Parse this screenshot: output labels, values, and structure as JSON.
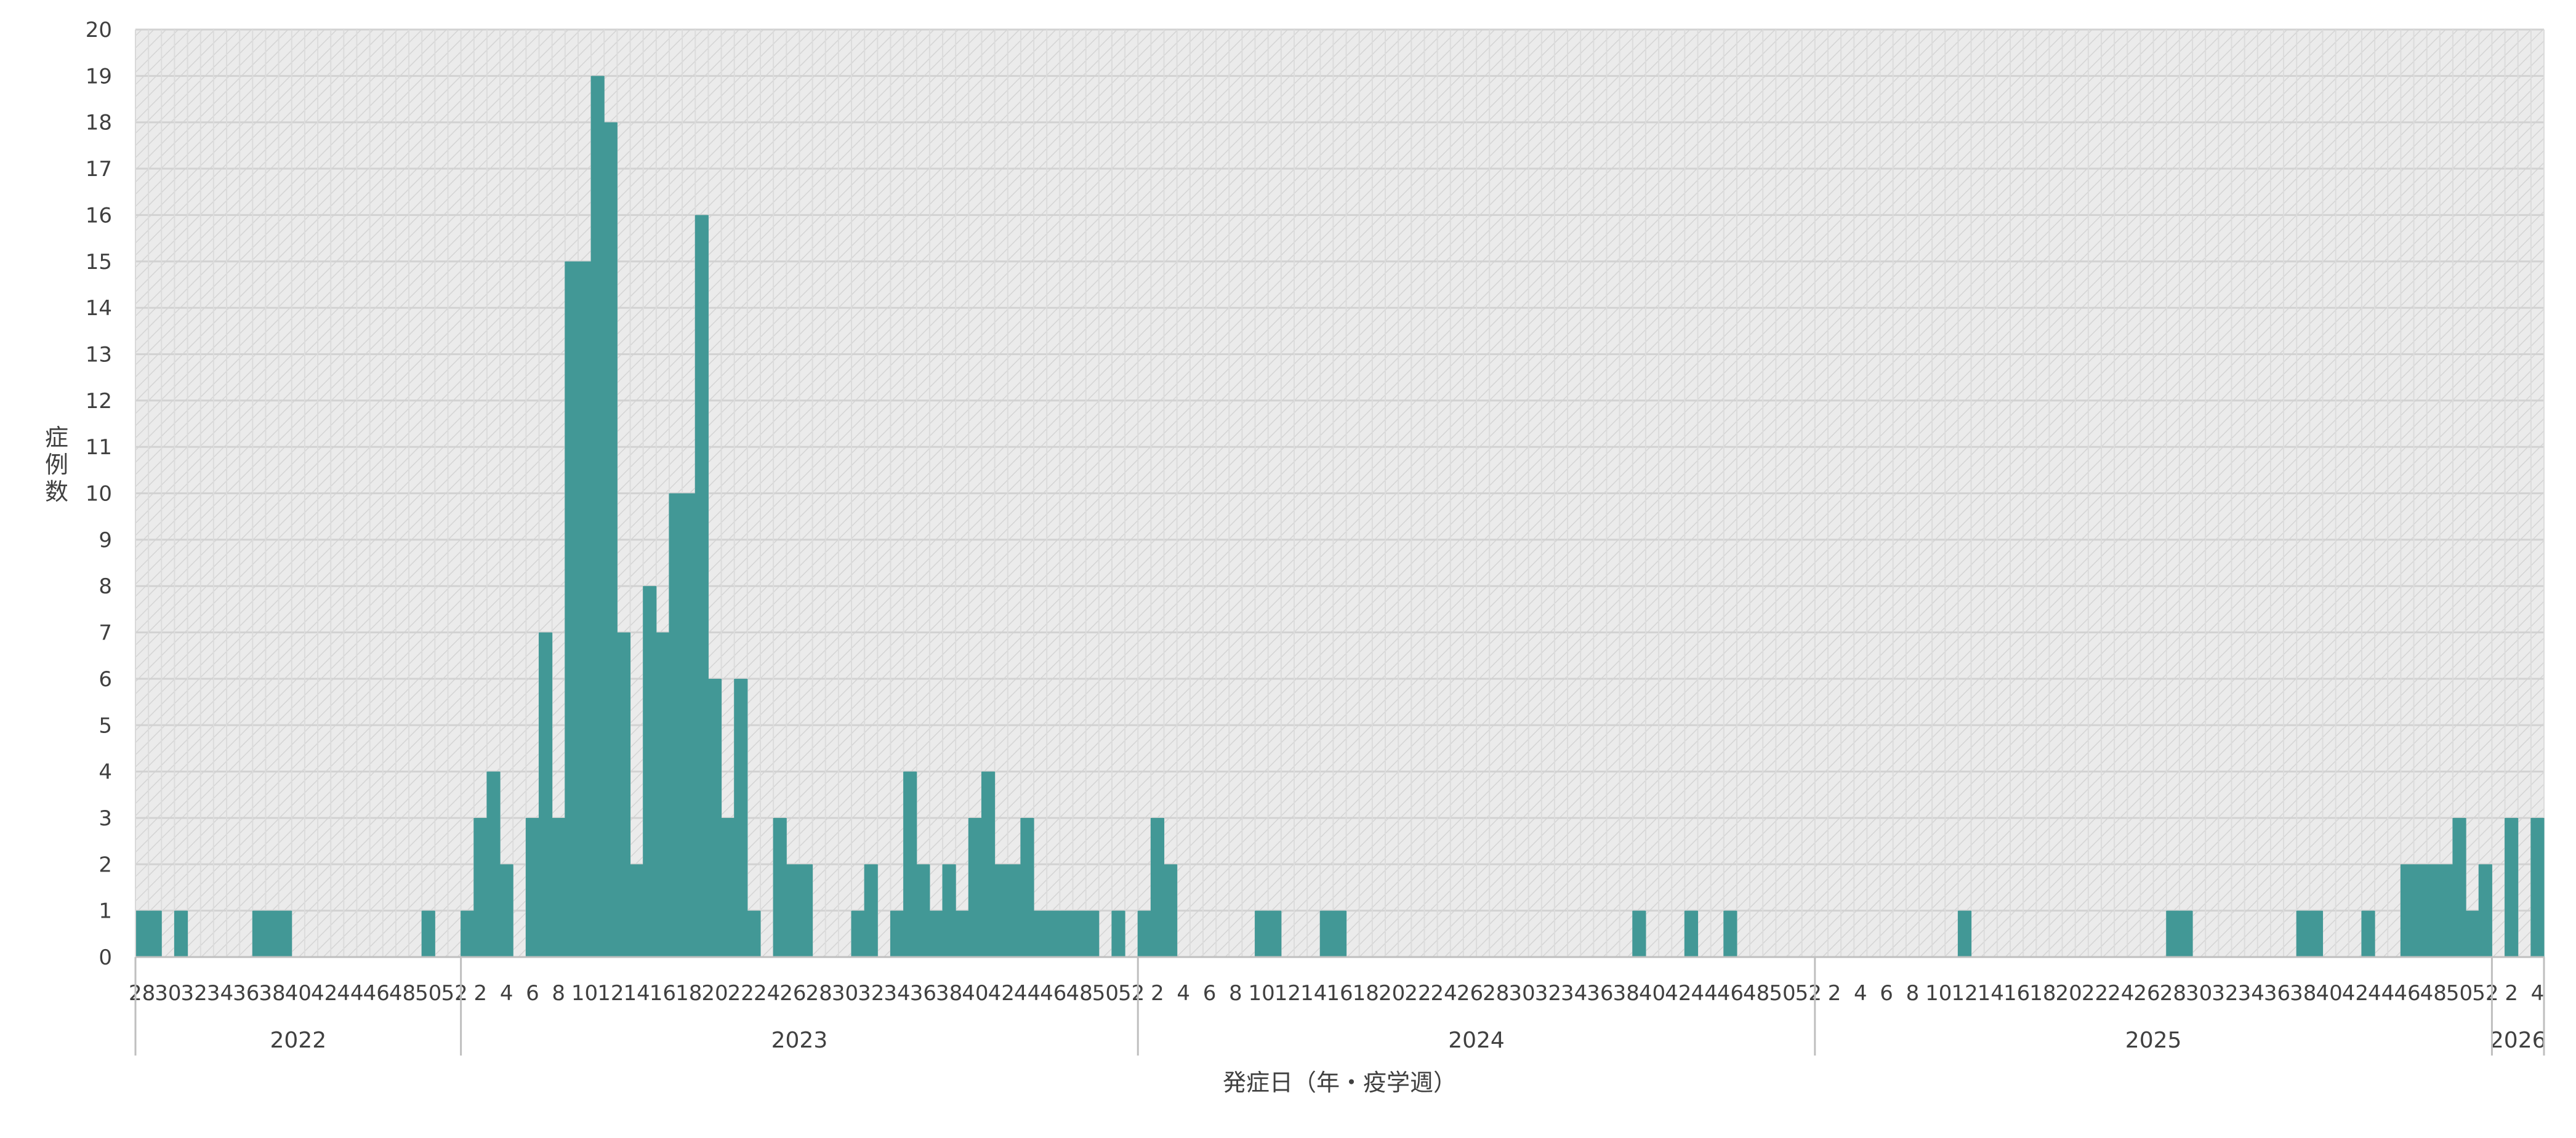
{
  "chart_data": {
    "type": "bar",
    "xlabel": "発症日（年・疫学週）",
    "ylabel": "症例数",
    "ylim": [
      0,
      20
    ],
    "y_ticks": [
      0,
      1,
      2,
      3,
      4,
      5,
      6,
      7,
      8,
      9,
      10,
      11,
      12,
      13,
      14,
      15,
      16,
      17,
      18,
      19,
      20
    ],
    "grid": true,
    "bar_color": "#429896",
    "plot_background": "#ebebeb",
    "years": [
      {
        "label": "2022",
        "start_week": 28,
        "end_week": 52
      },
      {
        "label": "2023",
        "start_week": 1,
        "end_week": 52
      },
      {
        "label": "2024",
        "start_week": 1,
        "end_week": 52
      },
      {
        "label": "2025",
        "start_week": 1,
        "end_week": 52
      },
      {
        "label": "2026",
        "start_week": 1,
        "end_week": 4
      }
    ],
    "values": [
      1,
      1,
      0,
      1,
      0,
      0,
      0,
      0,
      0,
      1,
      1,
      1,
      0,
      0,
      0,
      0,
      0,
      0,
      0,
      0,
      0,
      0,
      1,
      0,
      0,
      1,
      3,
      4,
      2,
      0,
      3,
      7,
      3,
      15,
      15,
      19,
      18,
      7,
      2,
      8,
      7,
      10,
      10,
      16,
      6,
      3,
      6,
      1,
      0,
      3,
      2,
      2,
      0,
      0,
      0,
      1,
      2,
      0,
      1,
      4,
      2,
      1,
      2,
      1,
      3,
      4,
      2,
      2,
      3,
      1,
      1,
      1,
      1,
      1,
      0,
      1,
      0,
      1,
      3,
      2,
      0,
      0,
      0,
      0,
      0,
      0,
      1,
      1,
      0,
      0,
      0,
      1,
      1,
      0,
      0,
      0,
      0,
      0,
      0,
      0,
      0,
      0,
      0,
      0,
      0,
      0,
      0,
      0,
      0,
      0,
      0,
      0,
      0,
      0,
      0,
      1,
      0,
      0,
      0,
      1,
      0,
      0,
      1,
      0,
      0,
      0,
      0,
      0,
      0,
      0,
      0,
      0,
      0,
      0,
      0,
      0,
      0,
      0,
      0,
      0,
      1,
      0,
      0,
      0,
      0,
      0,
      0,
      0,
      0,
      0,
      0,
      0,
      0,
      0,
      0,
      0,
      1,
      1,
      0,
      0,
      0,
      0,
      0,
      0,
      0,
      0,
      1,
      1,
      0,
      0,
      0,
      1,
      0,
      0,
      2,
      2,
      2,
      2,
      3,
      1,
      2,
      0,
      3,
      0,
      3
    ]
  }
}
